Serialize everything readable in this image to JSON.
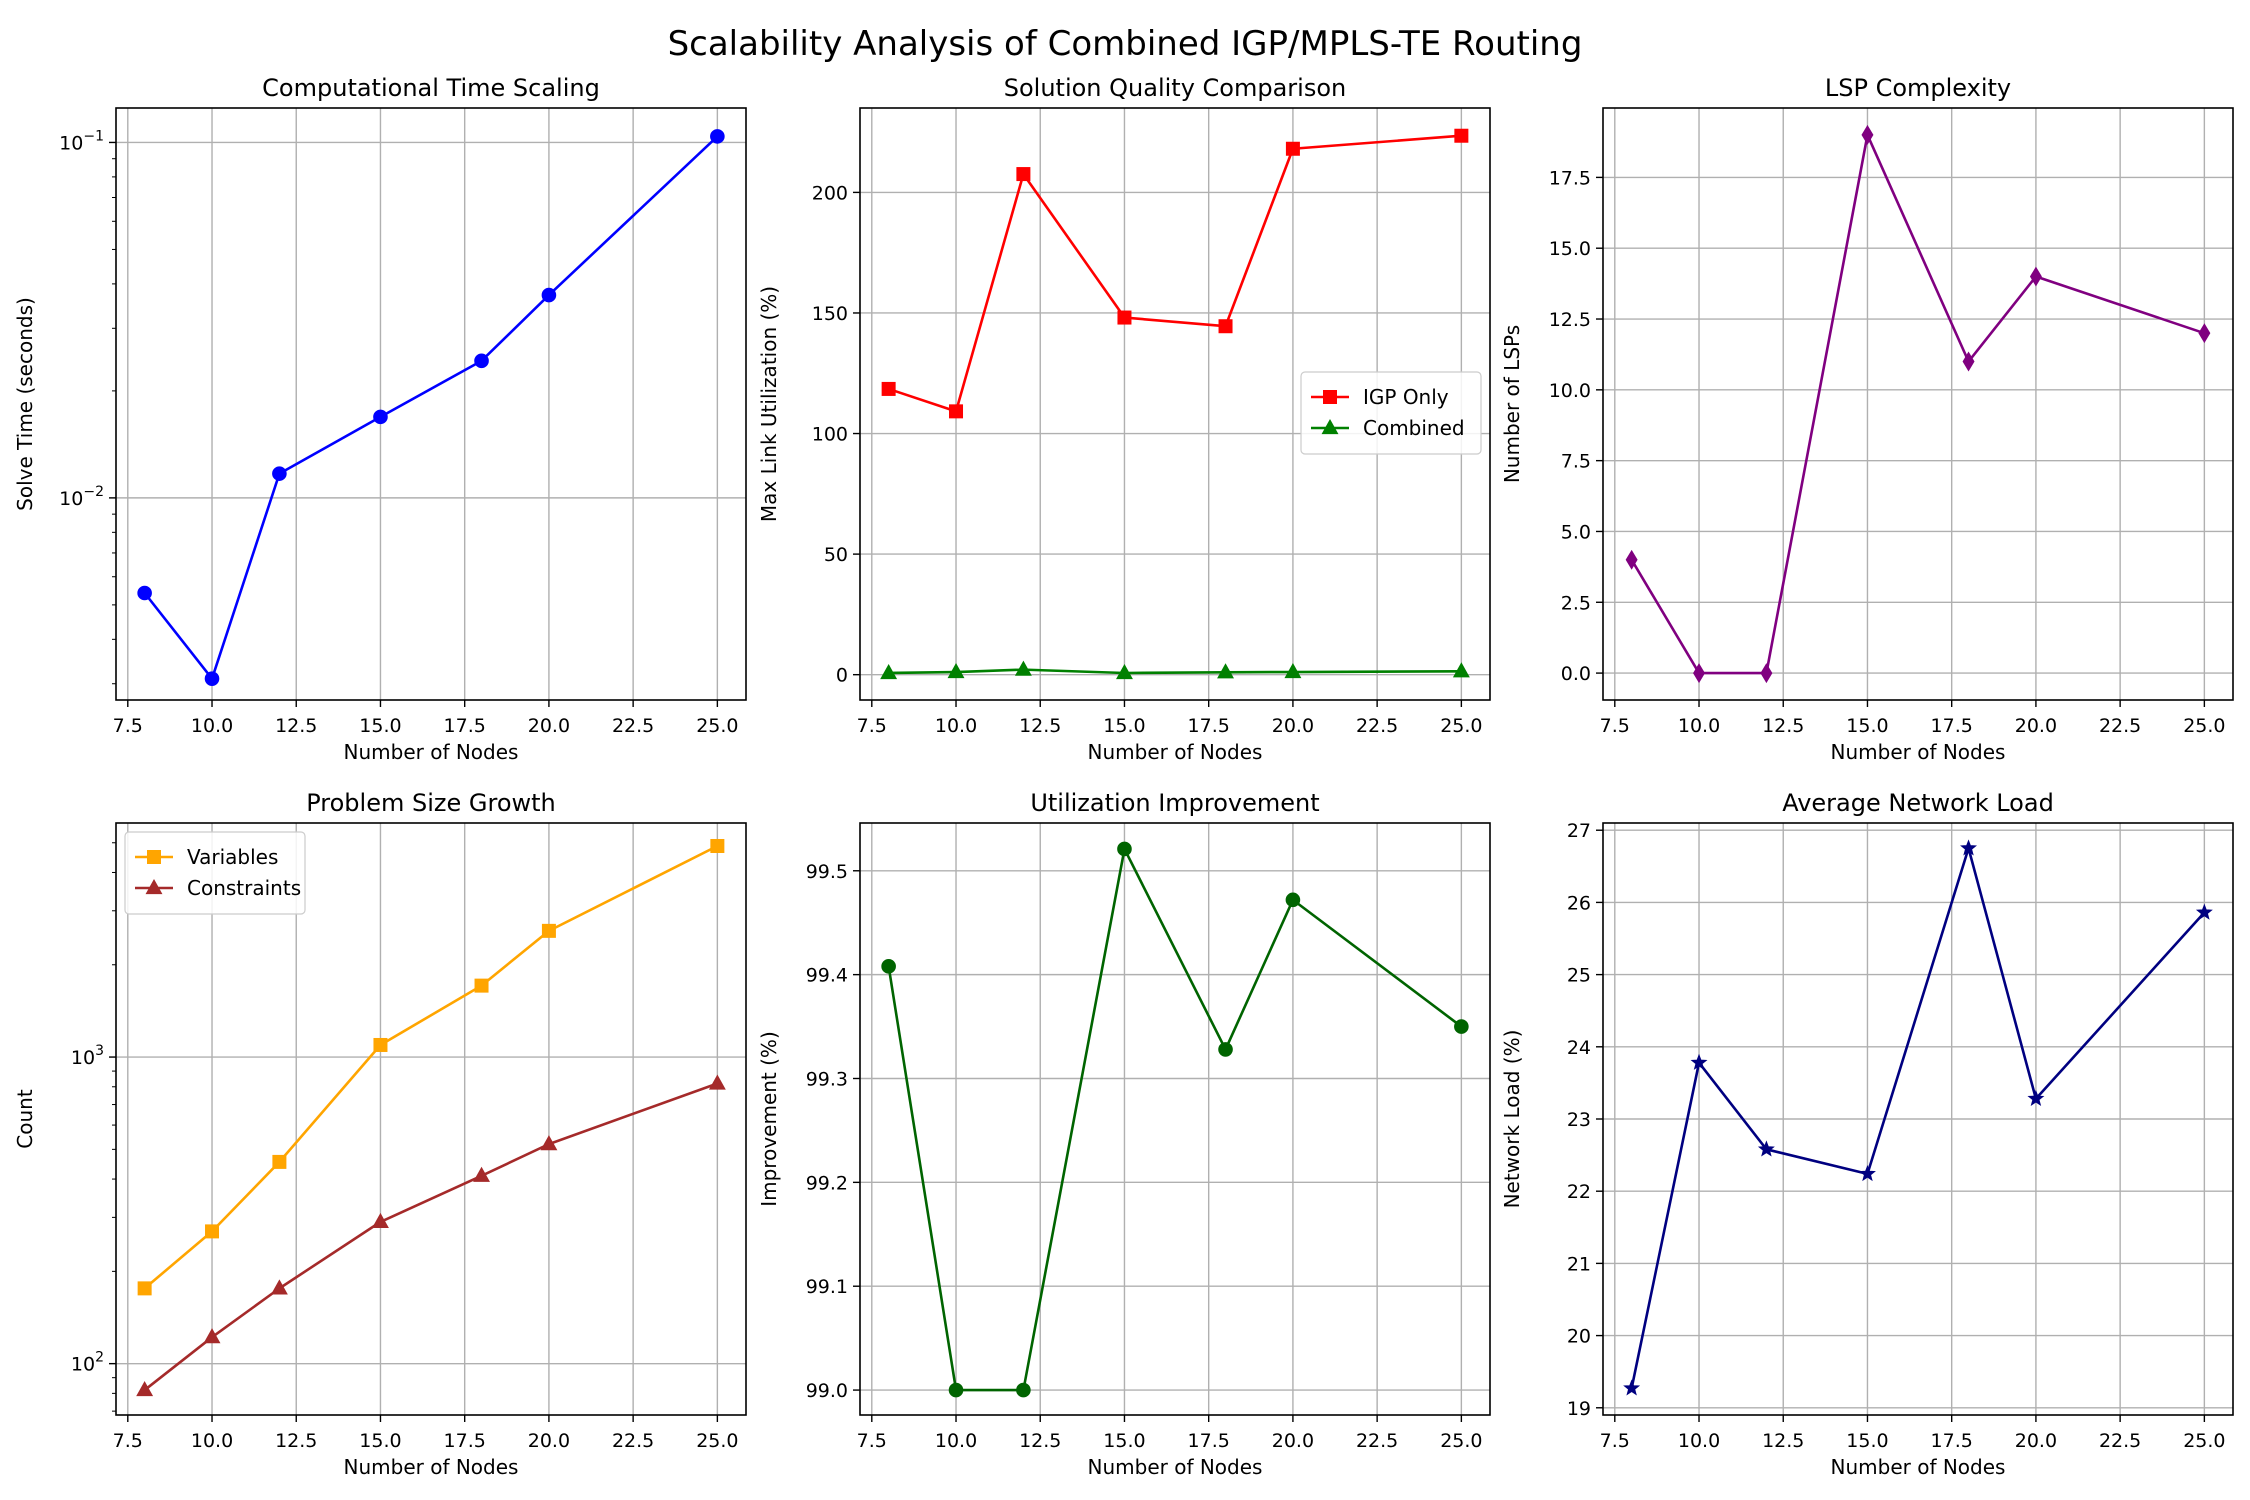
{
  "figure": {
    "title": "Scalability Analysis of Combined IGP/MPLS-TE Routing"
  },
  "chart_data": [
    {
      "type": "line",
      "title": "Computational Time Scaling",
      "xlabel": "Number of Nodes",
      "ylabel": "Solve Time (seconds)",
      "yscale": "log",
      "xlim": [
        7.15,
        25.85
      ],
      "ylim": [
        0.0027,
        0.125
      ],
      "xticks": [
        7.5,
        10.0,
        12.5,
        15.0,
        17.5,
        20.0,
        22.5,
        25.0
      ],
      "xtick_labels": [
        "7.5",
        "10.0",
        "12.5",
        "15.0",
        "17.5",
        "20.0",
        "22.5",
        "25.0"
      ],
      "yticks": [
        0.01,
        0.1
      ],
      "ytick_labels": [
        {
          "base": "10",
          "exp": "−2"
        },
        {
          "base": "10",
          "exp": "−1"
        }
      ],
      "grid": true,
      "legend": null,
      "series": [
        {
          "x": [
            8,
            10,
            12,
            15,
            18,
            20,
            25
          ],
          "y": [
            0.0054,
            0.0031,
            0.0117,
            0.0169,
            0.0243,
            0.0372,
            0.104
          ],
          "color": "#0000ff",
          "marker": "circle"
        }
      ]
    },
    {
      "type": "line",
      "title": "Solution Quality Comparison",
      "xlabel": "Number of Nodes",
      "ylabel": "Max Link Utilization (%)",
      "yscale": "linear",
      "xlim": [
        7.15,
        25.85
      ],
      "ylim": [
        -10.5,
        235
      ],
      "xticks": [
        7.5,
        10.0,
        12.5,
        15.0,
        17.5,
        20.0,
        22.5,
        25.0
      ],
      "xtick_labels": [
        "7.5",
        "10.0",
        "12.5",
        "15.0",
        "17.5",
        "20.0",
        "22.5",
        "25.0"
      ],
      "yticks": [
        0,
        50,
        100,
        150,
        200
      ],
      "ytick_labels": [
        "0",
        "50",
        "100",
        "150",
        "200"
      ],
      "grid": true,
      "legend": "center-right",
      "series": [
        {
          "name": "IGP Only",
          "x": [
            8,
            10,
            12,
            15,
            18,
            20,
            25
          ],
          "y": [
            118.5,
            109.2,
            207.6,
            148.1,
            144.5,
            218.1,
            223.5
          ],
          "color": "#ff0000",
          "marker": "square"
        },
        {
          "name": "Combined",
          "x": [
            8,
            10,
            12,
            15,
            18,
            20,
            25
          ],
          "y": [
            0.7,
            1.1,
            2.1,
            0.7,
            1.0,
            1.1,
            1.4
          ],
          "color": "#008000",
          "marker": "triangle"
        }
      ]
    },
    {
      "type": "line",
      "title": "LSP Complexity",
      "xlabel": "Number of Nodes",
      "ylabel": "Number of LSPs",
      "yscale": "linear",
      "xlim": [
        7.15,
        25.85
      ],
      "ylim": [
        -0.95,
        19.95
      ],
      "xticks": [
        7.5,
        10.0,
        12.5,
        15.0,
        17.5,
        20.0,
        22.5,
        25.0
      ],
      "xtick_labels": [
        "7.5",
        "10.0",
        "12.5",
        "15.0",
        "17.5",
        "20.0",
        "22.5",
        "25.0"
      ],
      "yticks": [
        0,
        2.5,
        5,
        7.5,
        10,
        12.5,
        15,
        17.5
      ],
      "ytick_labels": [
        "0.0",
        "2.5",
        "5.0",
        "7.5",
        "10.0",
        "12.5",
        "15.0",
        "17.5"
      ],
      "grid": true,
      "legend": null,
      "series": [
        {
          "x": [
            8,
            10,
            12,
            15,
            18,
            20,
            25
          ],
          "y": [
            4,
            0,
            0,
            19,
            11,
            14,
            12
          ],
          "color": "#800080",
          "marker": "diamond"
        }
      ]
    },
    {
      "type": "line",
      "title": "Problem Size Growth",
      "xlabel": "Number of Nodes",
      "ylabel": "Count",
      "yscale": "log",
      "xlim": [
        7.15,
        25.85
      ],
      "ylim": [
        68,
        5800
      ],
      "xticks": [
        7.5,
        10.0,
        12.5,
        15.0,
        17.5,
        20.0,
        22.5,
        25.0
      ],
      "xtick_labels": [
        "7.5",
        "10.0",
        "12.5",
        "15.0",
        "17.5",
        "20.0",
        "22.5",
        "25.0"
      ],
      "yticks": [
        100,
        1000
      ],
      "ytick_labels": [
        {
          "base": "10",
          "exp": "2"
        },
        {
          "base": "10",
          "exp": "3"
        }
      ],
      "grid": true,
      "legend": "top-left",
      "series": [
        {
          "name": "Variables",
          "x": [
            8,
            10,
            12,
            15,
            18,
            20,
            25
          ],
          "y": [
            176,
            270,
            455,
            1095,
            1710,
            2580,
            4880
          ],
          "color": "#ffa500",
          "marker": "square"
        },
        {
          "name": "Constraints",
          "x": [
            8,
            10,
            12,
            15,
            18,
            20,
            25
          ],
          "y": [
            82,
            122,
            176,
            290,
            410,
            520,
            820
          ],
          "color": "#a52a2a",
          "marker": "triangle"
        }
      ]
    },
    {
      "type": "line",
      "title": "Utilization Improvement",
      "xlabel": "Number of Nodes",
      "ylabel": "Improvement (%)",
      "yscale": "linear",
      "xlim": [
        7.15,
        25.85
      ],
      "ylim": [
        98.976,
        99.546
      ],
      "xticks": [
        7.5,
        10.0,
        12.5,
        15.0,
        17.5,
        20.0,
        22.5,
        25.0
      ],
      "xtick_labels": [
        "7.5",
        "10.0",
        "12.5",
        "15.0",
        "17.5",
        "20.0",
        "22.5",
        "25.0"
      ],
      "yticks": [
        99.0,
        99.1,
        99.2,
        99.3,
        99.4,
        99.5
      ],
      "ytick_labels": [
        "99.0",
        "99.1",
        "99.2",
        "99.3",
        "99.4",
        "99.5"
      ],
      "grid": true,
      "legend": null,
      "series": [
        {
          "x": [
            8,
            10,
            12,
            15,
            18,
            20,
            25
          ],
          "y": [
            99.408,
            99.0,
            99.0,
            99.521,
            99.328,
            99.472,
            99.35
          ],
          "color": "#006400",
          "marker": "circle"
        }
      ]
    },
    {
      "type": "line",
      "title": "Average Network Load",
      "xlabel": "Number of Nodes",
      "ylabel": "Network Load (%)",
      "yscale": "linear",
      "xlim": [
        7.15,
        25.85
      ],
      "ylim": [
        18.9,
        27.1
      ],
      "xticks": [
        7.5,
        10.0,
        12.5,
        15.0,
        17.5,
        20.0,
        22.5,
        25.0
      ],
      "xtick_labels": [
        "7.5",
        "10.0",
        "12.5",
        "15.0",
        "17.5",
        "20.0",
        "22.5",
        "25.0"
      ],
      "yticks": [
        19,
        20,
        21,
        22,
        23,
        24,
        25,
        26,
        27
      ],
      "ytick_labels": [
        "19",
        "20",
        "21",
        "22",
        "23",
        "24",
        "25",
        "26",
        "27"
      ],
      "grid": true,
      "legend": null,
      "series": [
        {
          "x": [
            8,
            10,
            12,
            15,
            18,
            20,
            25
          ],
          "y": [
            19.27,
            23.78,
            22.58,
            22.24,
            26.75,
            23.28,
            25.86
          ],
          "color": "#000080",
          "marker": "star"
        }
      ]
    }
  ]
}
